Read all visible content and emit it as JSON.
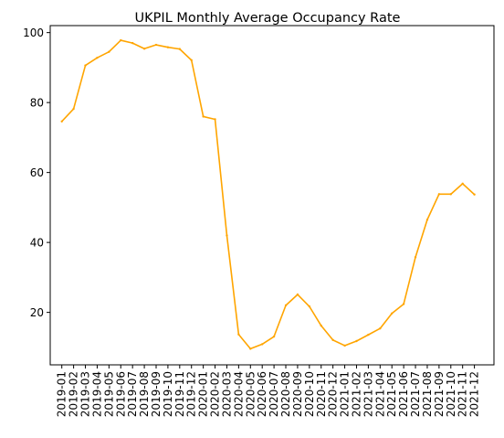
{
  "chart_data": {
    "type": "line",
    "title": "UKPIL Monthly Average Occupancy Rate",
    "xlabel": "",
    "ylabel": "",
    "categories": [
      "2019-01",
      "2019-02",
      "2019-03",
      "2019-04",
      "2019-05",
      "2019-06",
      "2019-07",
      "2019-08",
      "2019-09",
      "2019-10",
      "2019-11",
      "2019-12",
      "2020-01",
      "2020-02",
      "2020-03",
      "2020-04",
      "2020-05",
      "2020-06",
      "2020-07",
      "2020-08",
      "2020-09",
      "2020-10",
      "2020-11",
      "2020-12",
      "2021-01",
      "2021-02",
      "2021-03",
      "2021-04",
      "2021-05",
      "2021-06",
      "2021-07",
      "2021-08",
      "2021-09",
      "2021-10",
      "2021-11",
      "2021-12"
    ],
    "series": [
      {
        "color": "#ffa500",
        "values": [
          74.6,
          78.2,
          90.6,
          92.8,
          94.5,
          97.8,
          97.0,
          95.4,
          96.5,
          95.8,
          95.3,
          92.1,
          76.0,
          75.2,
          42.0,
          13.7,
          9.6,
          10.9,
          13.1,
          22.0,
          25.1,
          21.7,
          16.2,
          12.1,
          10.5,
          11.8,
          13.6,
          15.4,
          19.7,
          22.4,
          35.8,
          46.5,
          53.8,
          53.8,
          56.8,
          53.7
        ]
      }
    ],
    "ylim": [
      5,
      102
    ],
    "yticks": [
      20,
      40,
      60,
      80,
      100
    ],
    "grid": false,
    "legend": "none"
  }
}
